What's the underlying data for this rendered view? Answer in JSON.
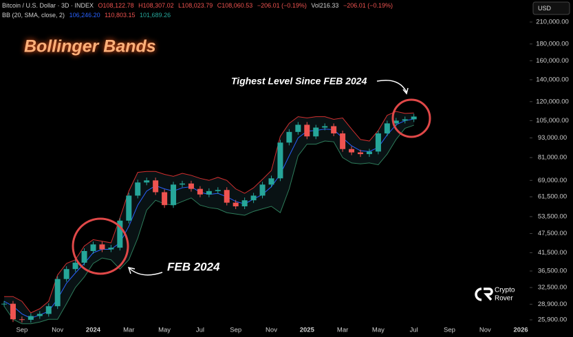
{
  "chart_data": {
    "type": "candlestick",
    "title": "Bollinger Bands",
    "header": {
      "symbol": "Bitcoin / U.S. Dollar · 3D · INDEX",
      "ohlc": [
        "O108,122.78",
        "H108,307.02",
        "L108,023.79",
        "C108,060.53",
        "−206.01 (−0.19%)"
      ],
      "volume": [
        "Vol216.33",
        "−206.01 (−0.19%)"
      ],
      "indicator": "BB (20, SMA, close, 2)",
      "indicator_values": [
        "106,246.20",
        "110,803.15",
        "101,689.26"
      ]
    },
    "currency": "USD",
    "annotations": [
      "Tighest Level Since FEB 2024",
      "FEB 2024"
    ],
    "watermark": [
      "Crypto",
      "Rover"
    ],
    "categories": [
      null,
      null,
      "Sep",
      null,
      null,
      null,
      "Nov",
      null,
      null,
      null,
      "2024",
      null,
      null,
      null,
      "Mar",
      null,
      null,
      null,
      "May",
      null,
      null,
      null,
      "Jul",
      null,
      null,
      null,
      "Sep",
      null,
      null,
      null,
      "Nov",
      null,
      null,
      null,
      "2025",
      null,
      null,
      null,
      "Mar",
      null,
      null,
      null,
      "May",
      null,
      null,
      null,
      "Jul",
      null,
      null,
      null,
      "Sep",
      null,
      null,
      null,
      "Nov",
      null,
      null,
      null,
      "2026",
      null
    ],
    "up_color": "#26a69a",
    "down_color": "#ef5350",
    "series": [
      {
        "color": "#26a69a",
        "values": [
          29000,
          26000,
          25900,
          26600,
          27000,
          28500,
          34500,
          37000,
          38700,
          42000,
          44000,
          42500,
          43000,
          52000,
          62000,
          68000,
          69000,
          63500,
          58000,
          67000,
          67500,
          65000,
          62500,
          64000,
          64500,
          59000,
          57500,
          60000,
          62000,
          67000,
          70000,
          90000,
          97000,
          102000,
          94000,
          100000,
          101000,
          96000,
          86000,
          84000,
          83000,
          84500,
          96000,
          103000,
          105000,
          106000,
          108060.53,
          null,
          null,
          null,
          null,
          null,
          null,
          null,
          null,
          null,
          null,
          null,
          null,
          null
        ]
      },
      {
        "color": "#2962ff",
        "values": [
          29500,
          28500,
          27000,
          26200,
          26800,
          27500,
          30000,
          33500,
          36000,
          38500,
          41500,
          42500,
          42500,
          44500,
          50000,
          58000,
          64000,
          66500,
          65000,
          64000,
          65500,
          66000,
          63500,
          62500,
          63000,
          61500,
          59500,
          58500,
          60500,
          62500,
          66000,
          72000,
          82000,
          93000,
          97500,
          98000,
          99000,
          98500,
          93000,
          88000,
          85000,
          84500,
          87000,
          95000,
          102000,
          105000,
          106246.2,
          null,
          null,
          null,
          null,
          null,
          null,
          null,
          null,
          null,
          null,
          null,
          null,
          null
        ]
      },
      {
        "color": "#d32f2f",
        "values": [
          30500,
          30500,
          29500,
          27200,
          28000,
          29500,
          35500,
          38500,
          39500,
          43500,
          45500,
          45000,
          44500,
          53000,
          64000,
          73000,
          73500,
          73500,
          72000,
          71000,
          72500,
          71500,
          70000,
          69000,
          70500,
          69000,
          65000,
          63000,
          65500,
          69500,
          74000,
          94000,
          103000,
          108000,
          107000,
          108000,
          108000,
          106000,
          107000,
          99000,
          92000,
          91000,
          98000,
          109000,
          112000,
          110500,
          110803.15,
          null,
          null,
          null,
          null,
          null,
          null,
          null,
          null,
          null,
          null,
          null,
          null,
          null
        ]
      },
      {
        "color": "#2e7d5b",
        "values": [
          28500,
          26000,
          25200,
          25200,
          25500,
          26000,
          26000,
          29000,
          32500,
          35000,
          38500,
          40000,
          39500,
          37000,
          39500,
          46000,
          56000,
          60000,
          58500,
          58000,
          59500,
          61000,
          58000,
          57000,
          56500,
          55000,
          54500,
          54000,
          55500,
          56500,
          57500,
          55000,
          65000,
          82000,
          89000,
          89000,
          91000,
          90500,
          81000,
          78000,
          77500,
          78000,
          77000,
          83000,
          92000,
          99500,
          101689.26,
          null,
          null,
          null,
          null,
          null,
          null,
          null,
          null,
          null,
          null,
          null,
          null,
          null
        ]
      }
    ],
    "log": true,
    "ylim": [
      24800,
      228000
    ],
    "yticks": [
      {
        "value": 25900,
        "label": "25,900.00"
      },
      {
        "value": 28900,
        "label": "28,900.00"
      },
      {
        "value": 32500,
        "label": "32,500.00"
      },
      {
        "value": 36500,
        "label": "36,500.00"
      },
      {
        "value": 41500,
        "label": "41,500.00"
      },
      {
        "value": 47500,
        "label": "47,500.00"
      },
      {
        "value": 53500,
        "label": "53,500.00"
      },
      {
        "value": 61500,
        "label": "61,500.00"
      },
      {
        "value": 69000,
        "label": "69,000.00"
      },
      {
        "value": 81000,
        "label": "81,000.00"
      },
      {
        "value": 93000,
        "label": "93,000.00"
      },
      {
        "value": 105000,
        "label": "105,000.00"
      },
      {
        "value": 120000,
        "label": "120,000.00"
      },
      {
        "value": 140000,
        "label": "140,000.00"
      },
      {
        "value": 160000,
        "label": "160,000.00"
      },
      {
        "value": 180000,
        "label": "180,000.00"
      },
      {
        "value": 210000,
        "label": "210,000.00"
      }
    ]
  }
}
